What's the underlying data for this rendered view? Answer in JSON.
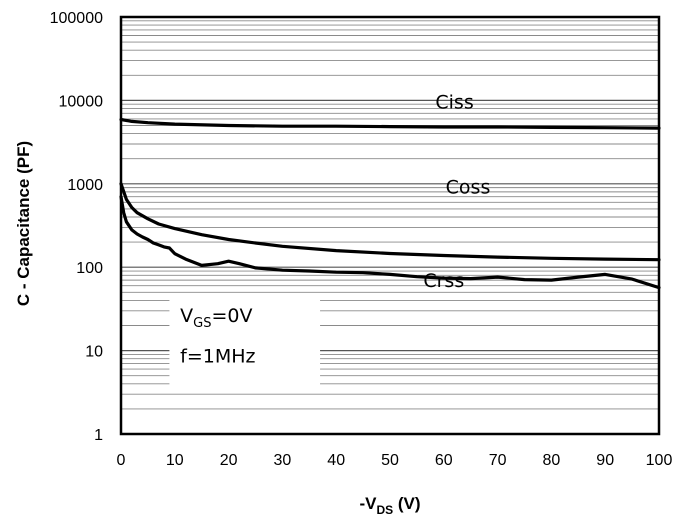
{
  "chart_data": {
    "type": "line",
    "title": "",
    "xlabel": {
      "prefix": "-V",
      "sub": "DS",
      "suffix": " (V)"
    },
    "ylabel": "C - Capacitance (PF)",
    "xlim": [
      0,
      100
    ],
    "ylim": [
      1,
      100000
    ],
    "yscale": "log",
    "grid": true,
    "x_ticks": [
      "0",
      "10",
      "20",
      "30",
      "40",
      "50",
      "60",
      "70",
      "80",
      "90",
      "100"
    ],
    "y_ticks": [
      "1",
      "10",
      "100",
      "1000",
      "10000",
      "100000"
    ],
    "series": [
      {
        "name": "Ciss",
        "x": [
          0,
          2,
          5,
          10,
          20,
          30,
          40,
          50,
          60,
          70,
          80,
          90,
          100
        ],
        "values": [
          5900,
          5600,
          5400,
          5200,
          5000,
          4900,
          4900,
          4850,
          4800,
          4800,
          4750,
          4700,
          4650
        ]
      },
      {
        "name": "Coss",
        "x": [
          0,
          1,
          2,
          3,
          5,
          7,
          10,
          15,
          20,
          25,
          30,
          40,
          50,
          60,
          70,
          80,
          90,
          100
        ],
        "values": [
          1000,
          650,
          520,
          450,
          380,
          330,
          290,
          245,
          215,
          195,
          178,
          158,
          146,
          138,
          132,
          128,
          125,
          123
        ]
      },
      {
        "name": "Crss",
        "x": [
          0,
          0.5,
          1,
          2,
          3,
          4,
          5,
          6,
          7,
          8,
          9,
          10,
          12,
          15,
          18,
          20,
          22,
          25,
          30,
          35,
          40,
          45,
          50,
          55,
          60,
          65,
          70,
          75,
          80,
          85,
          90,
          95,
          100
        ],
        "values": [
          700,
          450,
          350,
          280,
          250,
          230,
          215,
          195,
          185,
          175,
          170,
          145,
          125,
          105,
          110,
          118,
          110,
          98,
          92,
          90,
          87,
          86,
          82,
          77,
          74,
          73,
          76,
          71,
          70,
          76,
          82,
          72,
          57
        ]
      }
    ],
    "series_labels": [
      {
        "text": "Ciss",
        "x": 62,
        "y": 8000
      },
      {
        "text": "Coss",
        "x": 64.5,
        "y": 770
      },
      {
        "text": "Crss",
        "x": 60,
        "y": 58
      }
    ],
    "conditions": {
      "line1": {
        "prefix": "V",
        "sub": "GS",
        "suffix": "=0V"
      },
      "line2": "f=1MHz"
    }
  }
}
